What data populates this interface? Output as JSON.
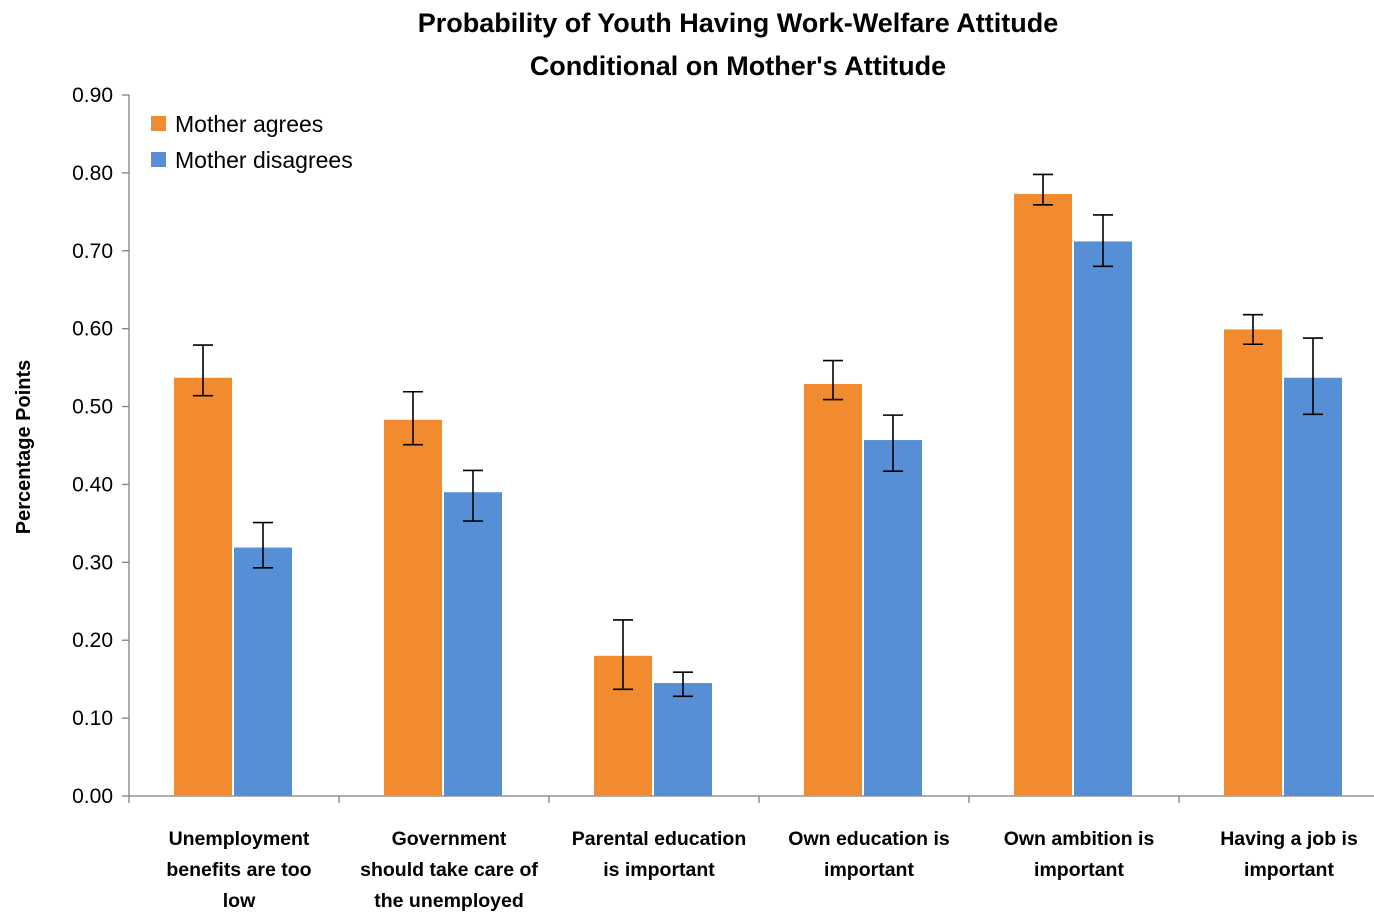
{
  "chart_data": {
    "type": "bar",
    "title_lines": [
      "Probability of Youth Having Work-Welfare Attitude",
      "Conditional on Mother's Attitude"
    ],
    "ylabel": "Percentage Points",
    "xlabel": "",
    "ylim": [
      0,
      0.9
    ],
    "yticks": [
      "0.00",
      "0.10",
      "0.20",
      "0.30",
      "0.40",
      "0.50",
      "0.60",
      "0.70",
      "0.80",
      "0.90"
    ],
    "grid": false,
    "legend_position": "top-left",
    "categories": [
      [
        "Unemployment",
        "benefits are too",
        "low"
      ],
      [
        "Government",
        "should take care of",
        "the unemployed"
      ],
      [
        "Parental education",
        "is important"
      ],
      [
        "Own education is",
        "important"
      ],
      [
        "Own ambition is",
        "important"
      ],
      [
        "Having a job is",
        "important"
      ]
    ],
    "series": [
      {
        "name": "Mother agrees",
        "color": "#F28A30",
        "values": [
          0.537,
          0.483,
          0.18,
          0.529,
          0.773,
          0.599
        ],
        "error_low": [
          0.514,
          0.451,
          0.137,
          0.509,
          0.759,
          0.58
        ],
        "error_high": [
          0.579,
          0.519,
          0.226,
          0.559,
          0.798,
          0.618
        ]
      },
      {
        "name": "Mother disagrees",
        "color": "#578FD6",
        "values": [
          0.319,
          0.39,
          0.145,
          0.457,
          0.712,
          0.537
        ],
        "error_low": [
          0.293,
          0.353,
          0.128,
          0.417,
          0.68,
          0.49
        ],
        "error_high": [
          0.351,
          0.418,
          0.159,
          0.489,
          0.746,
          0.588
        ]
      }
    ]
  }
}
